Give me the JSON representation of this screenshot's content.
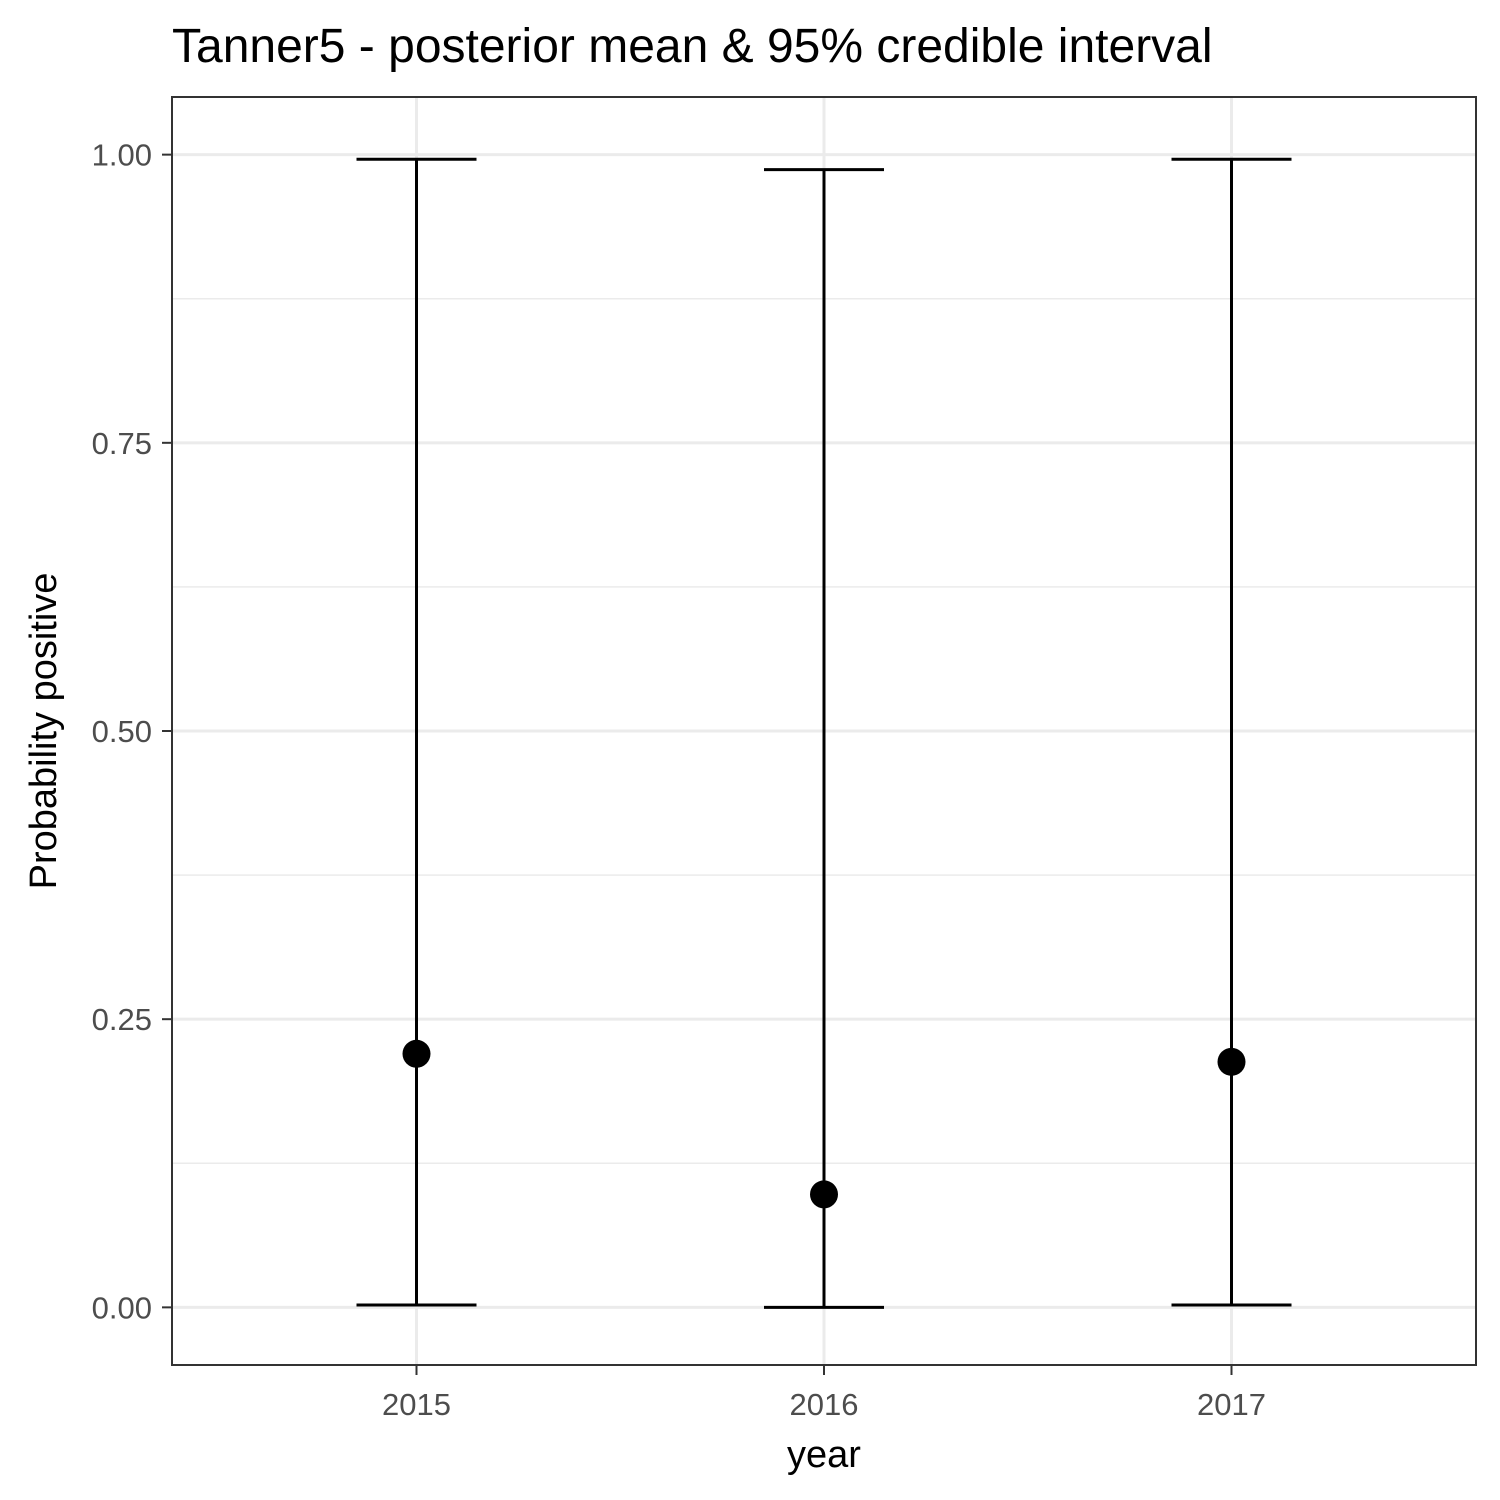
{
  "chart_data": {
    "type": "errorbar",
    "title": "Tanner5 - posterior mean & 95% credible interval",
    "xlabel": "year",
    "ylabel": "Probability positive",
    "categories": [
      "2015",
      "2016",
      "2017"
    ],
    "series": [
      {
        "mean": [
          0.22,
          0.098,
          0.213
        ],
        "lower": [
          0.002,
          0.0,
          0.002
        ],
        "upper": [
          0.996,
          0.987,
          0.996
        ]
      }
    ],
    "ylim": [
      -0.05,
      1.05
    ],
    "yticks": [
      0.0,
      0.25,
      0.5,
      0.75,
      1.0
    ],
    "ytick_labels": [
      "0.00",
      "0.25",
      "0.50",
      "0.75",
      "1.00"
    ],
    "grid": true,
    "colors": {
      "points": "#000000",
      "errorbars": "#000000",
      "grid": "#ebebeb",
      "panel_border": "#333333"
    }
  }
}
